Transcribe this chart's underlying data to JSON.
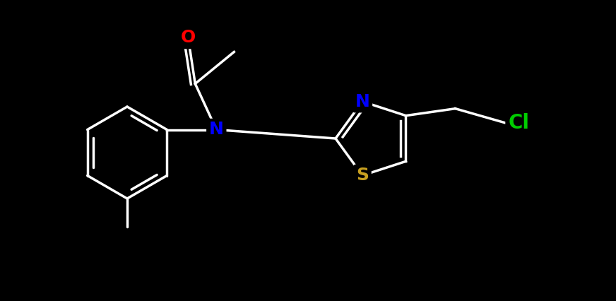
{
  "bg_color": "#000000",
  "bond_color": "#ffffff",
  "bond_width": 2.5,
  "figsize": [
    8.72,
    4.26
  ],
  "dpi": 100,
  "atoms": {
    "O": {
      "color": "#ff0000",
      "fontsize": 18
    },
    "N": {
      "color": "#0000ff",
      "fontsize": 18
    },
    "S": {
      "color": "#c8a020",
      "fontsize": 18
    },
    "Cl": {
      "color": "#00cc00",
      "fontsize": 18
    },
    "C": {
      "color": "#ffffff",
      "fontsize": 12
    }
  }
}
